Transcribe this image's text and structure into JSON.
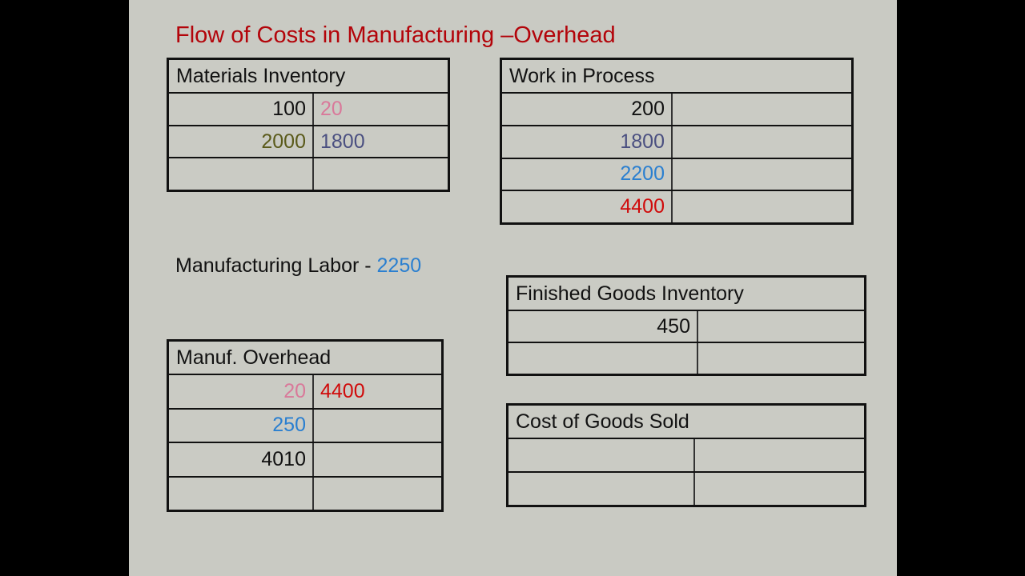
{
  "title": "Flow of Costs in Manufacturing –Overhead",
  "labor": {
    "label": "Manufacturing Labor - ",
    "value": "2250",
    "value_color": "#2a7fd0"
  },
  "accounts": [
    {
      "id": "materials-inventory",
      "name": "Materials Inventory",
      "rows": [
        [
          {
            "t": "100",
            "c": "#111111"
          },
          {
            "t": "20",
            "c": "#d9799a"
          }
        ],
        [
          {
            "t": "2000",
            "c": "#5a5a1a"
          },
          {
            "t": "1800",
            "c": "#4a4f80"
          }
        ],
        [
          {
            "t": "",
            "c": "#111111"
          },
          {
            "t": "",
            "c": "#111111"
          }
        ]
      ]
    },
    {
      "id": "work-in-process",
      "name": "Work in Process",
      "rows": [
        [
          {
            "t": "200",
            "c": "#111111"
          },
          {
            "t": "",
            "c": "#111111"
          }
        ],
        [
          {
            "t": "1800",
            "c": "#4a4f80"
          },
          {
            "t": "",
            "c": "#111111"
          }
        ],
        [
          {
            "t": "2200",
            "c": "#2a7fd0"
          },
          {
            "t": "",
            "c": "#111111"
          }
        ],
        [
          {
            "t": "4400",
            "c": "#d00a0a"
          },
          {
            "t": "",
            "c": "#111111"
          }
        ]
      ]
    },
    {
      "id": "finished-goods-inventory",
      "name": "Finished Goods Inventory",
      "rows": [
        [
          {
            "t": "450",
            "c": "#111111"
          },
          {
            "t": "",
            "c": "#111111"
          }
        ],
        [
          {
            "t": "",
            "c": "#111111"
          },
          {
            "t": "",
            "c": "#111111"
          }
        ]
      ]
    },
    {
      "id": "manuf-overhead",
      "name": "Manuf. Overhead",
      "rows": [
        [
          {
            "t": "20",
            "c": "#d9799a"
          },
          {
            "t": "4400",
            "c": "#d00a0a"
          }
        ],
        [
          {
            "t": "250",
            "c": "#2a7fd0"
          },
          {
            "t": "",
            "c": "#111111"
          }
        ],
        [
          {
            "t": "4010",
            "c": "#111111"
          },
          {
            "t": "",
            "c": "#111111"
          }
        ],
        [
          {
            "t": "",
            "c": "#111111"
          },
          {
            "t": "",
            "c": "#111111"
          }
        ]
      ]
    },
    {
      "id": "cost-of-goods-sold",
      "name": "Cost of Goods Sold",
      "rows": [
        [
          {
            "t": "",
            "c": "#111111"
          },
          {
            "t": "",
            "c": "#111111"
          }
        ],
        [
          {
            "t": "",
            "c": "#111111"
          },
          {
            "t": "",
            "c": "#111111"
          }
        ]
      ]
    }
  ]
}
